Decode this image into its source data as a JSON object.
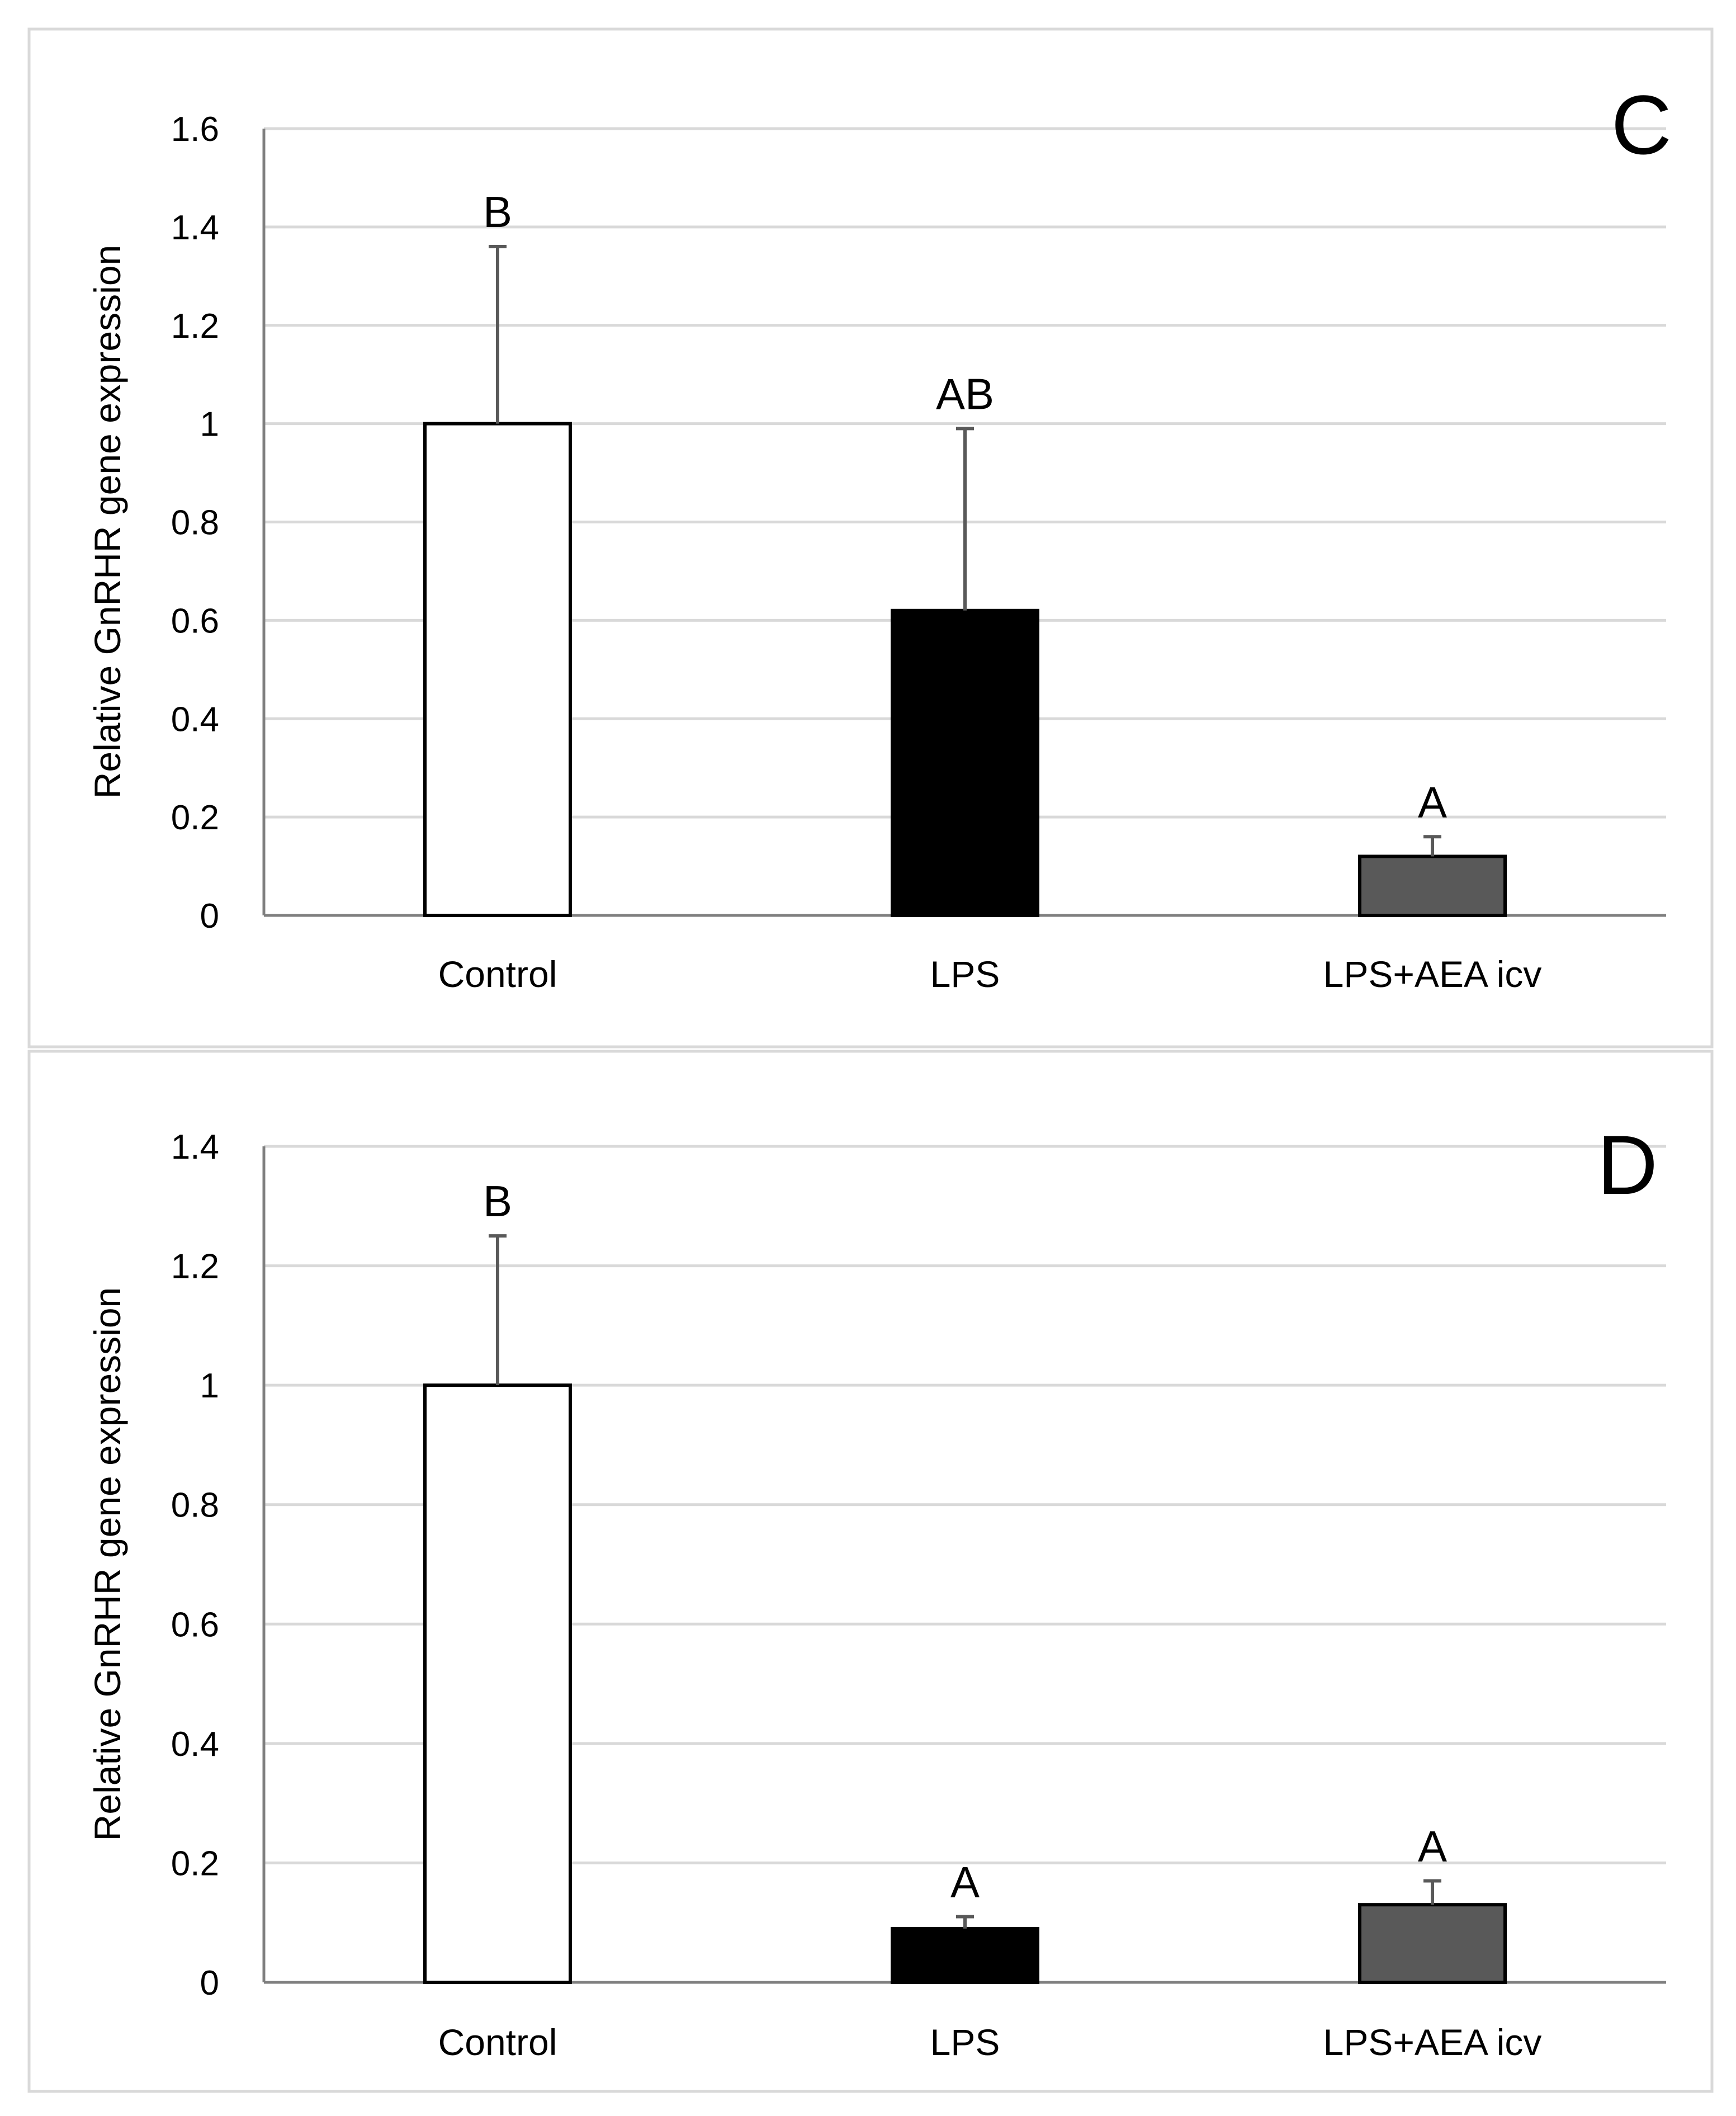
{
  "chart_data": [
    {
      "type": "bar",
      "panel": "C",
      "title": "",
      "xlabel": "",
      "ylabel": "Relative GnRHR gene expression",
      "ylim": [
        0,
        1.6
      ],
      "yticks": [
        0,
        0.2,
        0.4,
        0.6,
        0.8,
        1,
        1.2,
        1.4,
        1.6
      ],
      "ytick_labels": [
        "0",
        "0.2",
        "0.4",
        "0.6",
        "0.8",
        "1",
        "1.2",
        "1.4",
        "1.6"
      ],
      "grid": true,
      "categories": [
        "Control",
        "LPS",
        "LPS+AEA icv"
      ],
      "values": [
        1.0,
        0.62,
        0.12
      ],
      "errors": [
        0.36,
        0.37,
        0.04
      ],
      "significance": [
        "B",
        "AB",
        "A"
      ],
      "bar_colors": [
        "#ffffff",
        "#000000",
        "#595959"
      ]
    },
    {
      "type": "bar",
      "panel": "D",
      "title": "",
      "xlabel": "",
      "ylabel": "Relative GnRHR gene expression",
      "ylim": [
        0,
        1.4
      ],
      "yticks": [
        0,
        0.2,
        0.4,
        0.6,
        0.8,
        1,
        1.2,
        1.4
      ],
      "ytick_labels": [
        "0",
        "0.2",
        "0.4",
        "0.6",
        "0.8",
        "1",
        "1.2",
        "1.4"
      ],
      "grid": true,
      "categories": [
        "Control",
        "LPS",
        "LPS+AEA icv"
      ],
      "values": [
        1.0,
        0.09,
        0.13
      ],
      "errors": [
        0.25,
        0.02,
        0.04
      ],
      "significance": [
        "B",
        "A",
        "A"
      ],
      "bar_colors": [
        "#ffffff",
        "#000000",
        "#595959"
      ]
    }
  ]
}
